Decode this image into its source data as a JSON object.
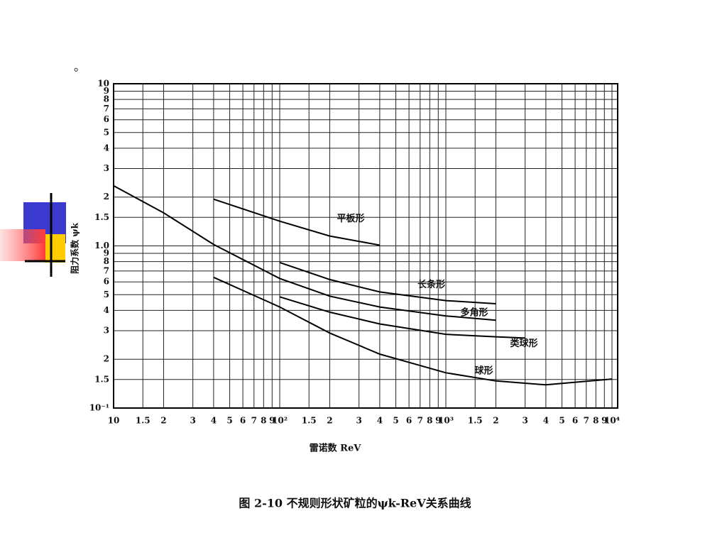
{
  "mark": "。",
  "chart_data": {
    "type": "line",
    "caption": "图 2-10   不规则形状矿粒的ψk-ReV关系曲线",
    "xlabel": "雷诺数 ReV",
    "ylabel": "阻力系数 ψk",
    "xlog": true,
    "ylog": true,
    "grid": true,
    "xlim": [
      10,
      10000
    ],
    "ylim": [
      0.1,
      10
    ],
    "xticks": [
      10,
      {
        "value": 15,
        "label": "1.5"
      },
      {
        "value": 20,
        "label": "2"
      },
      {
        "value": 30,
        "label": "3"
      },
      {
        "value": 40,
        "label": "4"
      },
      {
        "value": 50,
        "label": "5"
      },
      {
        "value": 60,
        "label": "6"
      },
      {
        "value": 70,
        "label": "7"
      },
      {
        "value": 80,
        "label": "8"
      },
      {
        "value": 90,
        "label": "9"
      },
      {
        "value": 100,
        "label": "10²"
      },
      {
        "value": 150,
        "label": "1.5"
      },
      {
        "value": 200,
        "label": "2"
      },
      {
        "value": 300,
        "label": "3"
      },
      {
        "value": 400,
        "label": "4"
      },
      {
        "value": 500,
        "label": "5"
      },
      {
        "value": 600,
        "label": "6"
      },
      {
        "value": 700,
        "label": "7"
      },
      {
        "value": 800,
        "label": "8"
      },
      {
        "value": 900,
        "label": "9"
      },
      {
        "value": 1000,
        "label": "10³"
      },
      {
        "value": 1500,
        "label": "1.5"
      },
      {
        "value": 2000,
        "label": "2"
      },
      {
        "value": 3000,
        "label": "3"
      },
      {
        "value": 4000,
        "label": "4"
      },
      {
        "value": 5000,
        "label": "5"
      },
      {
        "value": 6000,
        "label": "6"
      },
      {
        "value": 7000,
        "label": "7"
      },
      {
        "value": 8000,
        "label": "8"
      },
      {
        "value": 9000,
        "label": "9"
      },
      {
        "value": 10000,
        "label": "10⁴"
      }
    ],
    "yticks": [
      10,
      9,
      8,
      7,
      6,
      5,
      4,
      3,
      2,
      1.5,
      {
        "value": 1,
        "label": "1.0"
      },
      {
        "value": 0.9,
        "label": "9"
      },
      {
        "value": 0.8,
        "label": "8"
      },
      {
        "value": 0.7,
        "label": "7"
      },
      {
        "value": 0.6,
        "label": "6"
      },
      {
        "value": 0.5,
        "label": "5"
      },
      {
        "value": 0.4,
        "label": "4"
      },
      {
        "value": 0.3,
        "label": "3"
      },
      {
        "value": 0.2,
        "label": "2"
      },
      {
        "value": 0.15,
        "label": "1.5"
      },
      {
        "value": 0.1,
        "label": "10⁻¹"
      }
    ],
    "series": [
      {
        "name": "平板形",
        "color": "#000000",
        "x": [
          40,
          100,
          200,
          400
        ],
        "values": [
          1.94,
          1.42,
          1.15,
          1.01
        ]
      },
      {
        "name": "长条形",
        "color": "#000000",
        "x": [
          100,
          200,
          400,
          1000,
          2000
        ],
        "values": [
          0.79,
          0.62,
          0.52,
          0.46,
          0.44
        ]
      },
      {
        "name": "多角形",
        "color": "#000000",
        "x": [
          10,
          20,
          40,
          100,
          200,
          400,
          1000,
          2000
        ],
        "values": [
          2.35,
          1.6,
          1.02,
          0.63,
          0.49,
          0.42,
          0.37,
          0.348
        ]
      },
      {
        "name": "类球形",
        "color": "#000000",
        "x": [
          100,
          200,
          400,
          1000,
          2000,
          3000
        ],
        "values": [
          0.485,
          0.39,
          0.33,
          0.285,
          0.275,
          0.27
        ]
      },
      {
        "name": "球形",
        "color": "#000000",
        "x": [
          40,
          100,
          200,
          400,
          1000,
          2000,
          4000,
          10000
        ],
        "values": [
          0.64,
          0.42,
          0.29,
          0.215,
          0.165,
          0.147,
          0.139,
          0.151
        ]
      }
    ]
  }
}
